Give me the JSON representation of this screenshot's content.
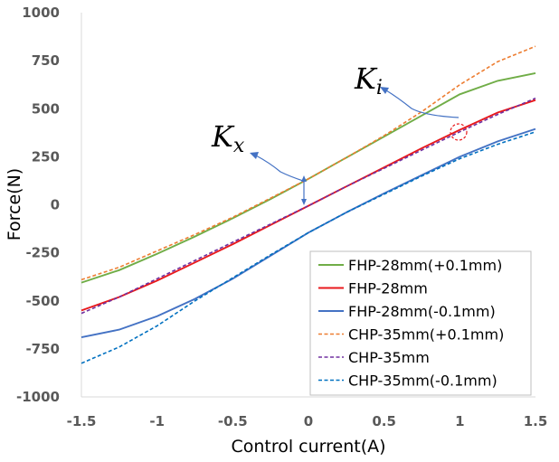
{
  "chart_data": {
    "type": "line",
    "xlabel": "Control current(A)",
    "ylabel": "Force(N)",
    "xlim": [
      -1.5,
      1.5
    ],
    "ylim": [
      -1000,
      1000
    ],
    "xticks": [
      "-1.5",
      "-1",
      "-0.5",
      "0",
      "0.5",
      "1",
      "1.5"
    ],
    "yticks": [
      "1000",
      "750",
      "500",
      "250",
      "0",
      "-250",
      "-500",
      "-750",
      "-1000"
    ],
    "grid": false,
    "legend_position": "bottom-right",
    "series": [
      {
        "name": "FHP-28mm(+0.1mm)",
        "color": "#70AD47",
        "dash": "solid",
        "x": [
          -1.5,
          -1.25,
          -1,
          -0.75,
          -0.5,
          -0.25,
          0,
          0.25,
          0.5,
          0.75,
          1,
          1.25,
          1.5
        ],
        "y": [
          -405,
          -340,
          -255,
          -165,
          -70,
          30,
          135,
          245,
          355,
          465,
          575,
          645,
          685
        ]
      },
      {
        "name": "FHP-28mm",
        "color": "#E8191C",
        "dash": "solid",
        "x": [
          -1.5,
          -1.25,
          -1,
          -0.75,
          -0.5,
          -0.25,
          0,
          0.25,
          0.5,
          0.75,
          1,
          1.25,
          1.5
        ],
        "y": [
          -550,
          -480,
          -395,
          -300,
          -205,
          -105,
          -5,
          95,
          195,
          295,
          390,
          480,
          545
        ]
      },
      {
        "name": "FHP-28mm(-0.1mm)",
        "color": "#4472C4",
        "dash": "solid",
        "x": [
          -1.5,
          -1.25,
          -1,
          -0.75,
          -0.5,
          -0.25,
          0,
          0.25,
          0.5,
          0.75,
          1,
          1.25,
          1.5
        ],
        "y": [
          -690,
          -650,
          -580,
          -490,
          -385,
          -265,
          -145,
          -40,
          60,
          155,
          250,
          330,
          395
        ]
      },
      {
        "name": "CHP-35mm(+0.1mm)",
        "color": "#ED7D31",
        "dash": "dashed",
        "x": [
          -1.5,
          -1.25,
          -1,
          -0.75,
          -0.5,
          -0.25,
          0,
          0.25,
          0.5,
          0.75,
          1,
          1.25,
          1.5
        ],
        "y": [
          -390,
          -325,
          -240,
          -155,
          -65,
          35,
          135,
          245,
          360,
          485,
          625,
          745,
          825
        ]
      },
      {
        "name": "CHP-35mm",
        "color": "#7030A0",
        "dash": "dashed",
        "x": [
          -1.5,
          -1.25,
          -1,
          -0.75,
          -0.5,
          -0.25,
          0,
          0.25,
          0.5,
          0.75,
          1,
          1.25,
          1.5
        ],
        "y": [
          -565,
          -480,
          -385,
          -290,
          -195,
          -100,
          -5,
          95,
          190,
          285,
          380,
          470,
          555
        ]
      },
      {
        "name": "CHP-35mm(-0.1mm)",
        "color": "#0070C0",
        "dash": "dashed",
        "x": [
          -1.5,
          -1.25,
          -1,
          -0.75,
          -0.5,
          -0.25,
          0,
          0.25,
          0.5,
          0.75,
          1,
          1.25,
          1.5
        ],
        "y": [
          -825,
          -740,
          -630,
          -500,
          -380,
          -260,
          -145,
          -40,
          55,
          150,
          240,
          315,
          380
        ]
      }
    ],
    "annotations": [
      {
        "main": "K",
        "sub": "i"
      },
      {
        "main": "K",
        "sub": "x"
      }
    ]
  }
}
